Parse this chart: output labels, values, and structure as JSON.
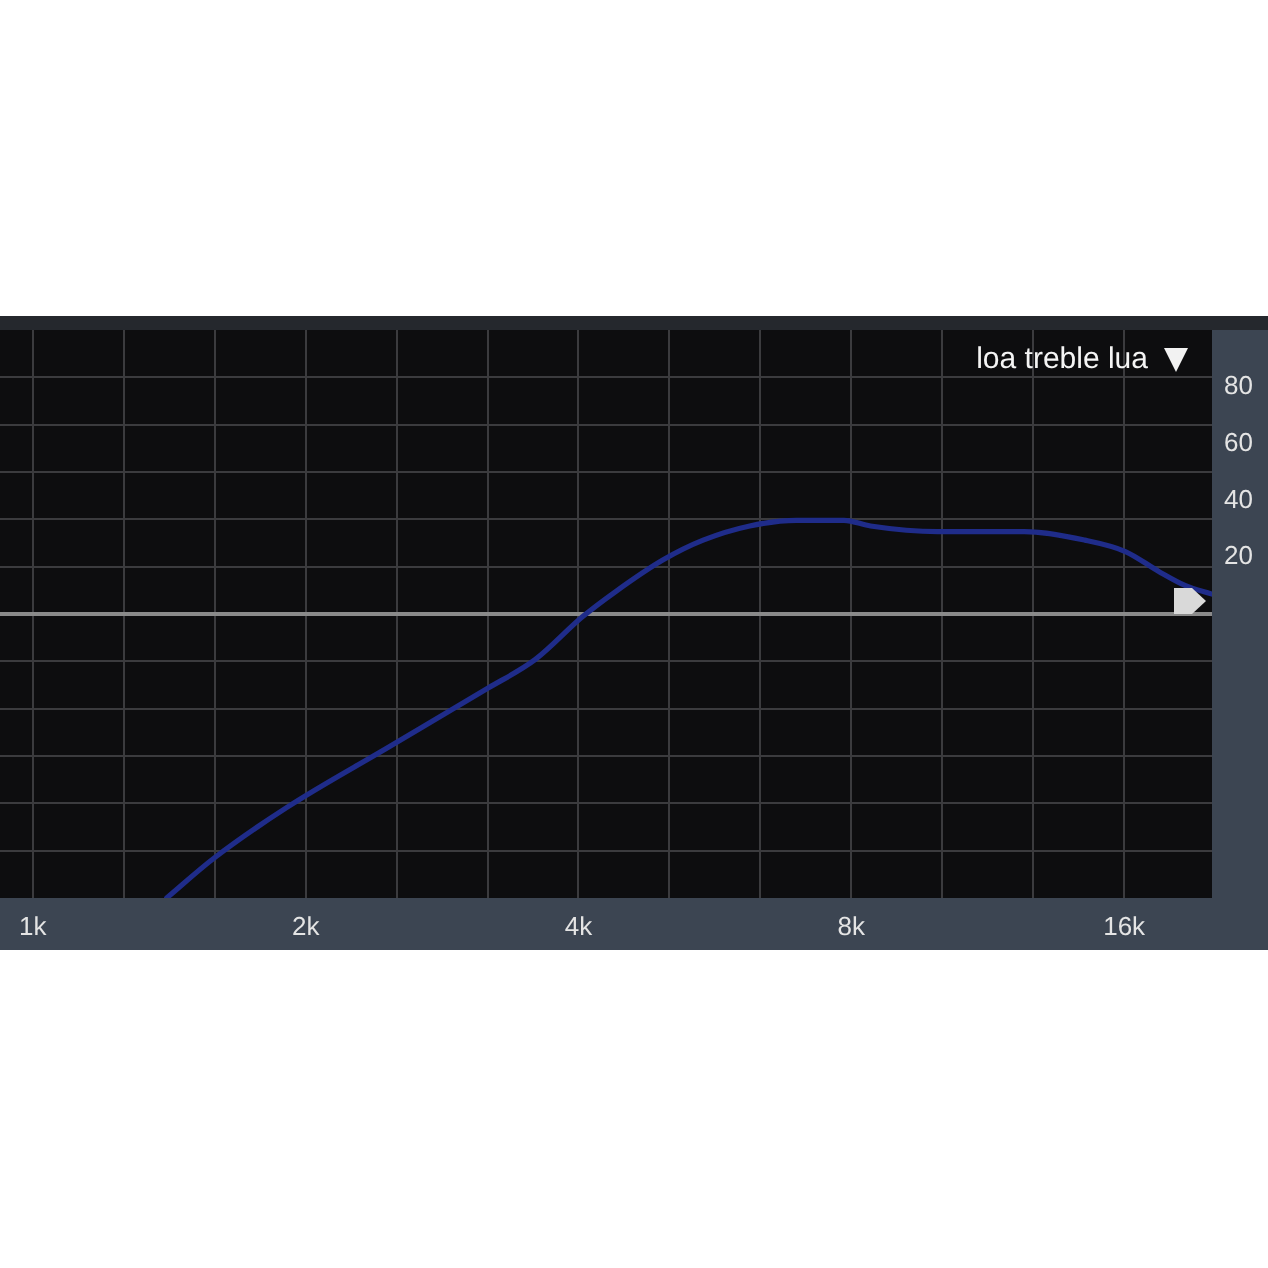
{
  "chart_data": {
    "type": "line",
    "title": "loa treble lua",
    "x": [
      1405,
      1584,
      1909,
      2465,
      3183,
      3585,
      4040,
      4400,
      4955,
      5490,
      6180,
      6960,
      7850,
      8400,
      9960,
      12420,
      14480,
      16050,
      17470,
      18700,
      20000
    ],
    "series": [
      {
        "color": "#1f2c8a",
        "values": [
          -100,
          -86,
          -68,
          -47,
          -26,
          -16,
          -1,
          8,
          19,
          26,
          31,
          33,
          33,
          31,
          29,
          29,
          26,
          22,
          15,
          10,
          7
        ]
      }
    ],
    "log": "x",
    "xlim": [
      920,
      20000
    ],
    "xticks": [
      {
        "value": 1000,
        "label": "1k"
      },
      {
        "value": 1260,
        "label": null
      },
      {
        "value": 1587,
        "label": null
      },
      {
        "value": 2000,
        "label": "2k"
      },
      {
        "value": 2520,
        "label": null
      },
      {
        "value": 3175,
        "label": null
      },
      {
        "value": 4000,
        "label": "4k"
      },
      {
        "value": 5040,
        "label": null
      },
      {
        "value": 6350,
        "label": null
      },
      {
        "value": 8000,
        "label": "8k"
      },
      {
        "value": 10080,
        "label": null
      },
      {
        "value": 12700,
        "label": null
      },
      {
        "value": 16000,
        "label": "16k"
      }
    ],
    "ylim": [
      -100,
      100
    ],
    "yticks": [
      {
        "value": -83.33,
        "label": null
      },
      {
        "value": -66.67,
        "label": null
      },
      {
        "value": -50,
        "label": null
      },
      {
        "value": -33.33,
        "label": null
      },
      {
        "value": -16.67,
        "label": null
      },
      {
        "value": 16.67,
        "label": null
      },
      20,
      {
        "value": 33.33,
        "label": null
      },
      40,
      {
        "value": 50,
        "label": null
      },
      60,
      {
        "value": 66.67,
        "label": null
      },
      80,
      {
        "value": 83.33,
        "label": null
      }
    ],
    "grid": true,
    "marker": "none",
    "ref_lines": [
      {
        "axis": "y",
        "value": 0,
        "color": "#8a8a8a"
      }
    ]
  }
}
